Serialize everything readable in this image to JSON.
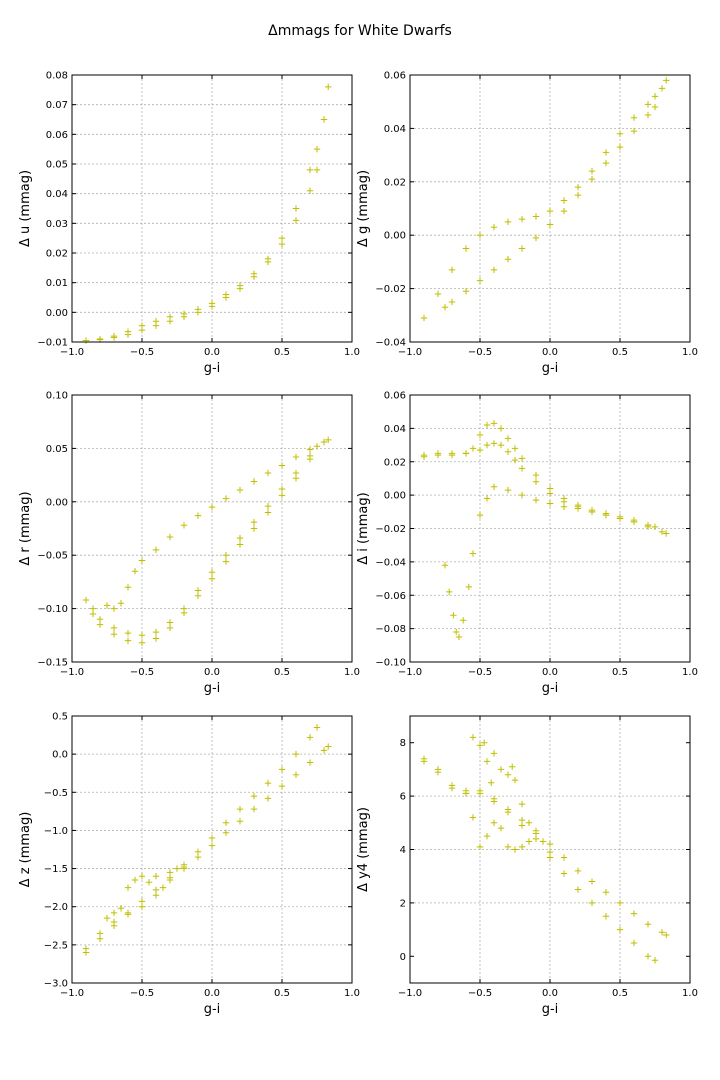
{
  "figure": {
    "title": "Δmmags for White Dwarfs"
  },
  "chart_data": [
    {
      "type": "scatter",
      "xlabel": "g-i",
      "ylabel": "Δ u (mmag)",
      "xlim": [
        -1.0,
        1.0
      ],
      "ylim": [
        -0.01,
        0.08
      ],
      "xticks": [
        -1.0,
        -0.5,
        0.0,
        0.5,
        1.0
      ],
      "xtick_labels": [
        "−1.0",
        "−0.5",
        "0.0",
        "0.5",
        "1.0"
      ],
      "yticks": [
        -0.01,
        0.0,
        0.01,
        0.02,
        0.03,
        0.04,
        0.05,
        0.06,
        0.07,
        0.08
      ],
      "ytick_labels": [
        "−0.01",
        "0.00",
        "0.01",
        "0.02",
        "0.03",
        "0.04",
        "0.05",
        "0.06",
        "0.07",
        "0.08"
      ],
      "grid": true,
      "marker": "+",
      "color": "#bfbf00",
      "series": [
        {
          "x": [
            -0.9,
            -0.8,
            -0.7,
            -0.6,
            -0.5,
            -0.4,
            -0.3,
            -0.2,
            -0.1,
            0.0,
            0.1,
            0.2,
            0.3,
            0.4,
            0.5,
            0.6,
            0.7,
            0.75,
            0.8,
            0.83
          ],
          "y": [
            -0.0095,
            -0.009,
            -0.008,
            -0.0065,
            -0.0045,
            -0.003,
            -0.0015,
            -0.0005,
            0.001,
            0.003,
            0.006,
            0.009,
            0.013,
            0.018,
            0.025,
            0.035,
            0.048,
            0.055,
            0.065,
            0.076
          ]
        },
        {
          "x": [
            -0.9,
            -0.8,
            -0.7,
            -0.6,
            -0.5,
            -0.4,
            -0.3,
            -0.2,
            -0.1,
            0.0,
            0.1,
            0.2,
            0.3,
            0.4,
            0.5,
            0.6,
            0.7,
            0.75
          ],
          "y": [
            -0.0095,
            -0.0092,
            -0.0085,
            -0.0075,
            -0.006,
            -0.0045,
            -0.003,
            -0.0015,
            0.0,
            0.002,
            0.005,
            0.008,
            0.012,
            0.017,
            0.023,
            0.031,
            0.041,
            0.048
          ]
        }
      ]
    },
    {
      "type": "scatter",
      "xlabel": "g-i",
      "ylabel": "Δ g (mmag)",
      "xlim": [
        -1.0,
        1.0
      ],
      "ylim": [
        -0.04,
        0.06
      ],
      "xticks": [
        -1.0,
        -0.5,
        0.0,
        0.5,
        1.0
      ],
      "xtick_labels": [
        "−1.0",
        "−0.5",
        "0.0",
        "0.5",
        "1.0"
      ],
      "yticks": [
        -0.04,
        -0.02,
        0.0,
        0.02,
        0.04,
        0.06
      ],
      "ytick_labels": [
        "−0.04",
        "−0.02",
        "0.00",
        "0.02",
        "0.04",
        "0.06"
      ],
      "grid": true,
      "marker": "+",
      "color": "#bfbf00",
      "series": [
        {
          "x": [
            -0.9,
            -0.8,
            -0.7,
            -0.6,
            -0.5,
            -0.4,
            -0.3,
            -0.2,
            -0.1,
            0.0,
            0.1,
            0.2,
            0.3,
            0.4,
            0.5,
            0.6,
            0.7,
            0.75,
            0.8,
            0.83
          ],
          "y": [
            -0.031,
            -0.022,
            -0.013,
            -0.005,
            0.0,
            0.003,
            0.005,
            0.006,
            0.007,
            0.009,
            0.013,
            0.018,
            0.024,
            0.031,
            0.038,
            0.044,
            0.049,
            0.052,
            0.055,
            0.058
          ]
        },
        {
          "x": [
            -0.75,
            -0.7,
            -0.6,
            -0.5,
            -0.4,
            -0.3,
            -0.2,
            -0.1,
            0.0,
            0.1,
            0.2,
            0.3,
            0.4,
            0.5,
            0.6,
            0.7,
            0.75
          ],
          "y": [
            -0.027,
            -0.025,
            -0.021,
            -0.017,
            -0.013,
            -0.009,
            -0.005,
            -0.001,
            0.004,
            0.009,
            0.015,
            0.021,
            0.027,
            0.033,
            0.039,
            0.045,
            0.048
          ]
        }
      ]
    },
    {
      "type": "scatter",
      "xlabel": "g-i",
      "ylabel": "Δ r (mmag)",
      "xlim": [
        -1.0,
        1.0
      ],
      "ylim": [
        -0.15,
        0.1
      ],
      "xticks": [
        -1.0,
        -0.5,
        0.0,
        0.5,
        1.0
      ],
      "xtick_labels": [
        "−1.0",
        "−0.5",
        "0.0",
        "0.5",
        "1.0"
      ],
      "yticks": [
        -0.15,
        -0.1,
        -0.05,
        0.0,
        0.05,
        0.1
      ],
      "ytick_labels": [
        "−0.15",
        "−0.10",
        "−0.05",
        "0.00",
        "0.05",
        "0.10"
      ],
      "grid": true,
      "marker": "+",
      "color": "#bfbf00",
      "series": [
        {
          "x": [
            -0.75,
            -0.7,
            -0.65,
            -0.6,
            -0.55,
            -0.5,
            -0.4,
            -0.3,
            -0.2,
            -0.1,
            0.0,
            0.1,
            0.2,
            0.3,
            0.4,
            0.5,
            0.6,
            0.7,
            0.8,
            0.83
          ],
          "y": [
            -0.097,
            -0.1,
            -0.095,
            -0.08,
            -0.065,
            -0.055,
            -0.045,
            -0.033,
            -0.022,
            -0.013,
            -0.005,
            0.003,
            0.011,
            0.019,
            0.027,
            0.034,
            0.042,
            0.049,
            0.056,
            0.058
          ]
        },
        {
          "x": [
            -0.9,
            -0.85,
            -0.8,
            -0.7,
            -0.6,
            -0.5,
            -0.4,
            -0.3,
            -0.2,
            -0.1,
            0.0,
            0.1,
            0.2,
            0.3,
            0.4,
            0.5,
            0.6,
            0.7,
            0.75
          ],
          "y": [
            -0.092,
            -0.1,
            -0.11,
            -0.118,
            -0.123,
            -0.125,
            -0.122,
            -0.113,
            -0.1,
            -0.083,
            -0.066,
            -0.05,
            -0.034,
            -0.019,
            -0.004,
            0.012,
            0.027,
            0.043,
            0.052
          ]
        },
        {
          "x": [
            -0.85,
            -0.8,
            -0.7,
            -0.6,
            -0.5,
            -0.4,
            -0.3,
            -0.2,
            -0.1,
            0.0,
            0.1,
            0.2,
            0.3,
            0.4,
            0.5,
            0.6,
            0.7
          ],
          "y": [
            -0.105,
            -0.115,
            -0.124,
            -0.13,
            -0.132,
            -0.128,
            -0.118,
            -0.104,
            -0.088,
            -0.072,
            -0.056,
            -0.04,
            -0.025,
            -0.01,
            0.006,
            0.022,
            0.04
          ]
        }
      ]
    },
    {
      "type": "scatter",
      "xlabel": "g-i",
      "ylabel": "Δ i (mmag)",
      "xlim": [
        -1.0,
        1.0
      ],
      "ylim": [
        -0.1,
        0.06
      ],
      "xticks": [
        -1.0,
        -0.5,
        0.0,
        0.5,
        1.0
      ],
      "xtick_labels": [
        "−1.0",
        "−0.5",
        "0.0",
        "0.5",
        "1.0"
      ],
      "yticks": [
        -0.1,
        -0.08,
        -0.06,
        -0.04,
        -0.02,
        0.0,
        0.02,
        0.04,
        0.06
      ],
      "ytick_labels": [
        "−0.10",
        "−0.08",
        "−0.06",
        "−0.04",
        "−0.02",
        "0.00",
        "0.02",
        "0.04",
        "0.06"
      ],
      "grid": true,
      "marker": "+",
      "color": "#bfbf00",
      "series": [
        {
          "x": [
            -0.9,
            -0.8,
            -0.7,
            -0.6,
            -0.55,
            -0.5,
            -0.45,
            -0.4,
            -0.35,
            -0.3,
            -0.25,
            -0.2,
            -0.1,
            0.0,
            0.1,
            0.2,
            0.3,
            0.4,
            0.5,
            0.6,
            0.7,
            0.75
          ],
          "y": [
            0.024,
            0.025,
            0.025,
            0.025,
            0.028,
            0.036,
            0.042,
            0.043,
            0.04,
            0.034,
            0.028,
            0.022,
            0.012,
            0.004,
            -0.002,
            -0.006,
            -0.009,
            -0.011,
            -0.013,
            -0.015,
            -0.018,
            -0.019
          ]
        },
        {
          "x": [
            -0.9,
            -0.8,
            -0.7,
            -0.6,
            -0.5,
            -0.45,
            -0.4,
            -0.35,
            -0.3,
            -0.25,
            -0.2,
            -0.1,
            0.0,
            0.1,
            0.2,
            0.3,
            0.4,
            0.5,
            0.6,
            0.7
          ],
          "y": [
            0.023,
            0.024,
            0.024,
            0.025,
            0.027,
            0.03,
            0.031,
            0.03,
            0.026,
            0.021,
            0.016,
            0.008,
            0.001,
            -0.004,
            -0.007,
            -0.01,
            -0.012,
            -0.014,
            -0.016,
            -0.018
          ]
        },
        {
          "x": [
            -0.75,
            -0.72,
            -0.69,
            -0.67,
            -0.65,
            -0.62,
            -0.58,
            -0.55,
            -0.5,
            -0.45,
            -0.4,
            -0.3,
            -0.2,
            -0.1,
            0.0,
            0.1,
            0.2,
            0.3,
            0.4,
            0.5,
            0.6,
            0.7,
            0.8,
            0.83
          ],
          "y": [
            -0.042,
            -0.058,
            -0.072,
            -0.082,
            -0.085,
            -0.075,
            -0.055,
            -0.035,
            -0.012,
            -0.002,
            0.005,
            0.003,
            0.0,
            -0.003,
            -0.005,
            -0.007,
            -0.008,
            -0.01,
            -0.012,
            -0.014,
            -0.016,
            -0.019,
            -0.022,
            -0.023
          ]
        }
      ]
    },
    {
      "type": "scatter",
      "xlabel": "g-i",
      "ylabel": "Δ z (mmag)",
      "xlim": [
        -1.0,
        1.0
      ],
      "ylim": [
        -3.0,
        0.5
      ],
      "xticks": [
        -1.0,
        -0.5,
        0.0,
        0.5,
        1.0
      ],
      "xtick_labels": [
        "−1.0",
        "−0.5",
        "0.0",
        "0.5",
        "1.0"
      ],
      "yticks": [
        -3.0,
        -2.5,
        -2.0,
        -1.5,
        -1.0,
        -0.5,
        0.0,
        0.5
      ],
      "ytick_labels": [
        "−3.0",
        "−2.5",
        "−2.0",
        "−1.5",
        "−1.0",
        "−0.5",
        "0.0",
        "0.5"
      ],
      "grid": true,
      "marker": "+",
      "color": "#bfbf00",
      "series": [
        {
          "x": [
            -0.9,
            -0.8,
            -0.7,
            -0.6,
            -0.5,
            -0.4,
            -0.3,
            -0.2,
            -0.1,
            0.0,
            0.1,
            0.2,
            0.3,
            0.4,
            0.5,
            0.6,
            0.7,
            0.75
          ],
          "y": [
            -2.6,
            -2.42,
            -2.25,
            -2.08,
            -1.93,
            -1.78,
            -1.62,
            -1.45,
            -1.28,
            -1.1,
            -0.9,
            -0.72,
            -0.55,
            -0.38,
            -0.2,
            0.0,
            0.22,
            0.35
          ]
        },
        {
          "x": [
            -0.9,
            -0.8,
            -0.7,
            -0.6,
            -0.5,
            -0.4,
            -0.3,
            -0.2,
            -0.1,
            0.0,
            0.1,
            0.2,
            0.3,
            0.4,
            0.5,
            0.6,
            0.7,
            0.8,
            0.83
          ],
          "y": [
            -2.55,
            -2.35,
            -2.2,
            -2.1,
            -2.0,
            -1.85,
            -1.65,
            -1.5,
            -1.35,
            -1.2,
            -1.03,
            -0.88,
            -0.72,
            -0.58,
            -0.42,
            -0.27,
            -0.11,
            0.05,
            0.1
          ]
        },
        {
          "x": [
            -0.75,
            -0.7,
            -0.65,
            -0.6,
            -0.55,
            -0.5,
            -0.45,
            -0.4,
            -0.35,
            -0.3,
            -0.25,
            -0.2
          ],
          "y": [
            -2.15,
            -2.08,
            -2.02,
            -1.75,
            -1.65,
            -1.6,
            -1.68,
            -1.6,
            -1.75,
            -1.55,
            -1.5,
            -1.48
          ]
        }
      ]
    },
    {
      "type": "scatter",
      "xlabel": "g-i",
      "ylabel": "Δ y4 (mmag)",
      "xlim": [
        -1.0,
        1.0
      ],
      "ylim": [
        -1,
        9
      ],
      "xticks": [
        -1.0,
        -0.5,
        0.0,
        0.5,
        1.0
      ],
      "xtick_labels": [
        "−1.0",
        "−0.5",
        "0.0",
        "0.5",
        "1.0"
      ],
      "yticks": [
        0,
        2,
        4,
        6,
        8
      ],
      "ytick_labels": [
        "0",
        "2",
        "4",
        "6",
        "8"
      ],
      "grid": true,
      "marker": "+",
      "color": "#bfbf00",
      "series": [
        {
          "x": [
            -0.9,
            -0.8,
            -0.7,
            -0.6,
            -0.5,
            -0.4,
            -0.3,
            -0.2,
            -0.1,
            0.0,
            0.1,
            0.2,
            0.3,
            0.4,
            0.5,
            0.6,
            0.7,
            0.8,
            0.83
          ],
          "y": [
            7.4,
            7.0,
            6.4,
            6.1,
            6.2,
            5.9,
            5.5,
            5.1,
            4.7,
            4.2,
            3.7,
            3.2,
            2.8,
            2.4,
            2.0,
            1.6,
            1.2,
            0.9,
            0.8
          ]
        },
        {
          "x": [
            -0.9,
            -0.8,
            -0.7,
            -0.6,
            -0.5,
            -0.4,
            -0.3,
            -0.2,
            -0.1,
            0.0,
            0.1,
            0.2,
            0.3,
            0.4,
            0.5,
            0.6,
            0.7,
            0.75
          ],
          "y": [
            7.3,
            6.9,
            6.3,
            6.1,
            6.1,
            5.8,
            5.4,
            4.9,
            4.4,
            3.7,
            3.1,
            2.5,
            2.0,
            1.5,
            1.0,
            0.5,
            0.0,
            -0.15
          ]
        },
        {
          "x": [
            -0.6,
            -0.55,
            -0.5,
            -0.47,
            -0.45,
            -0.42,
            -0.4,
            -0.35,
            -0.3,
            -0.27,
            -0.25,
            -0.2,
            -0.15,
            -0.1,
            -0.05,
            0.0
          ],
          "y": [
            6.2,
            8.2,
            7.9,
            8.0,
            7.3,
            6.5,
            7.6,
            7.0,
            6.8,
            7.1,
            6.6,
            5.7,
            5.0,
            4.6,
            4.3,
            3.9
          ]
        },
        {
          "x": [
            -0.55,
            -0.5,
            -0.45,
            -0.4,
            -0.35,
            -0.3,
            -0.25,
            -0.2,
            -0.15
          ],
          "y": [
            5.2,
            4.1,
            4.5,
            5.0,
            4.8,
            4.1,
            4.0,
            4.1,
            4.3
          ]
        }
      ]
    }
  ]
}
